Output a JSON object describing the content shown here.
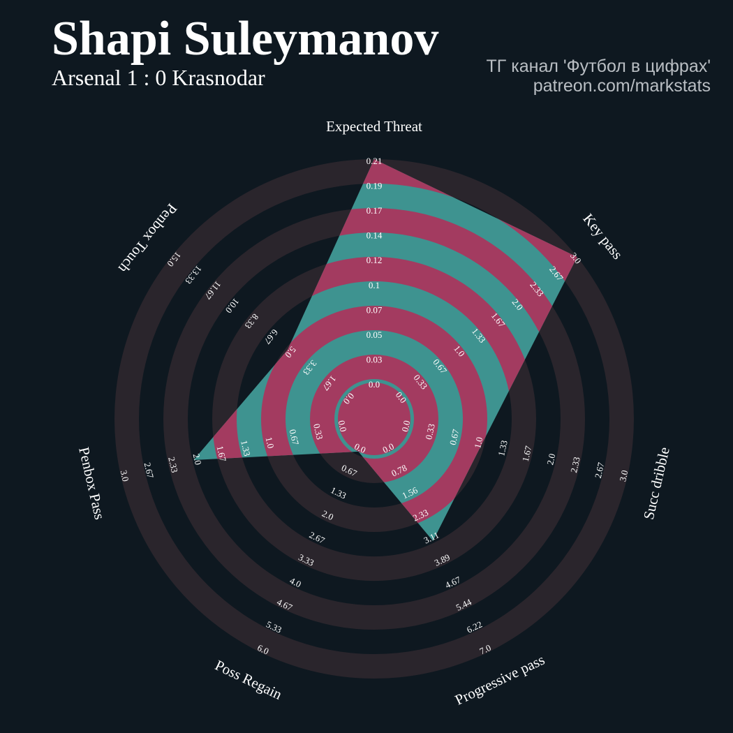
{
  "header": {
    "title": "Shapi Suleymanov",
    "subtitle": "Arsenal 1 : 0 Krasnodar",
    "credit_line1": "ТГ канал 'Футбол в цифрах'",
    "credit_line2": "patreon.com/markstats"
  },
  "colors": {
    "background": "#0e1820",
    "ring_dark": "#2a252c",
    "ring_fill_a": "#a33b60",
    "ring_fill_b": "#3e9390",
    "text": "#ffffff"
  },
  "chart_data": {
    "type": "radar",
    "params": [
      "Expected Threat",
      "Key pass",
      "Succ dribble",
      "Progressive pass",
      "Poss Regain",
      "Penbox Pass",
      "Penbox Touch"
    ],
    "ranges": [
      [
        0.0,
        0.21
      ],
      [
        0.0,
        3.0
      ],
      [
        0.0,
        3.0
      ],
      [
        0.0,
        7.0
      ],
      [
        0.0,
        6.0
      ],
      [
        0.0,
        3.0
      ],
      [
        0.0,
        15.0
      ]
    ],
    "values": [
      0.21,
      3.0,
      1.0,
      3.11,
      0.0,
      2.0,
      5.0
    ],
    "tick_labels": [
      [
        "0.0",
        "0.03",
        "0.05",
        "0.07",
        "0.1",
        "0.12",
        "0.14",
        "0.17",
        "0.19",
        "0.21"
      ],
      [
        "0.0",
        "0.33",
        "0.67",
        "1.0",
        "1.33",
        "1.67",
        "2.0",
        "2.33",
        "2.67",
        "3.0"
      ],
      [
        "0.0",
        "0.33",
        "0.67",
        "1.0",
        "1.33",
        "1.67",
        "2.0",
        "2.33",
        "2.67",
        "3.0"
      ],
      [
        "0.0",
        "0.78",
        "1.56",
        "2.33",
        "3.11",
        "3.89",
        "4.67",
        "5.44",
        "6.22",
        "7.0"
      ],
      [
        "0.0",
        "0.67",
        "1.33",
        "2.0",
        "2.67",
        "3.33",
        "4.0",
        "4.67",
        "5.33",
        "6.0"
      ],
      [
        "0.0",
        "0.33",
        "0.67",
        "1.0",
        "1.33",
        "1.67",
        "2.0",
        "2.33",
        "2.67",
        "3.0"
      ],
      [
        "0.0",
        "1.67",
        "3.33",
        "5.0",
        "6.67",
        "8.33",
        "10.0",
        "11.67",
        "13.33",
        "15.0"
      ]
    ],
    "legend": "none"
  }
}
